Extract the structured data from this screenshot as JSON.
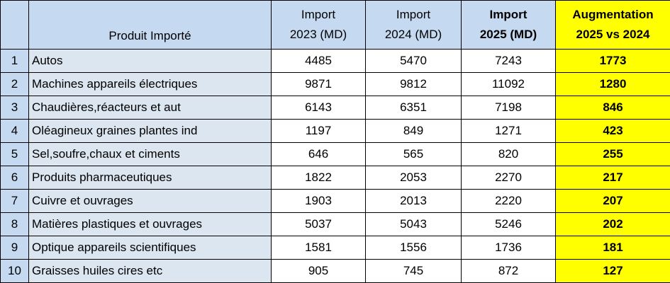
{
  "header": {
    "product": "Produit Importé",
    "columns": [
      [
        "Import",
        "2023 (MD)"
      ],
      [
        "Import",
        "2024 (MD)"
      ],
      [
        "Import",
        "2025 (MD)"
      ],
      [
        "Augmentation",
        "2025 vs 2024"
      ]
    ]
  },
  "table": {
    "rows": [
      [
        1,
        "Autos",
        4485,
        5470,
        7243,
        1773
      ],
      [
        2,
        "Machines appareils électriques",
        9871,
        9812,
        11092,
        1280
      ],
      [
        3,
        "Chaudières,réacteurs et aut",
        6143,
        6351,
        7198,
        846
      ],
      [
        4,
        "Oléagineux graines plantes ind",
        1197,
        849,
        1271,
        423
      ],
      [
        5,
        "Sel,soufre,chaux et ciments",
        646,
        565,
        820,
        255
      ],
      [
        6,
        "Produits pharmaceutiques",
        1822,
        2053,
        2270,
        217
      ],
      [
        7,
        "Cuivre et ouvrages",
        1903,
        2013,
        2220,
        207
      ],
      [
        8,
        "Matières plastiques et ouvrages",
        5037,
        5043,
        5246,
        202
      ],
      [
        9,
        "Optique appareils scientifiques",
        1581,
        1556,
        1736,
        181
      ],
      [
        10,
        "Graisses huiles cires etc",
        905,
        745,
        872,
        127
      ]
    ]
  }
}
